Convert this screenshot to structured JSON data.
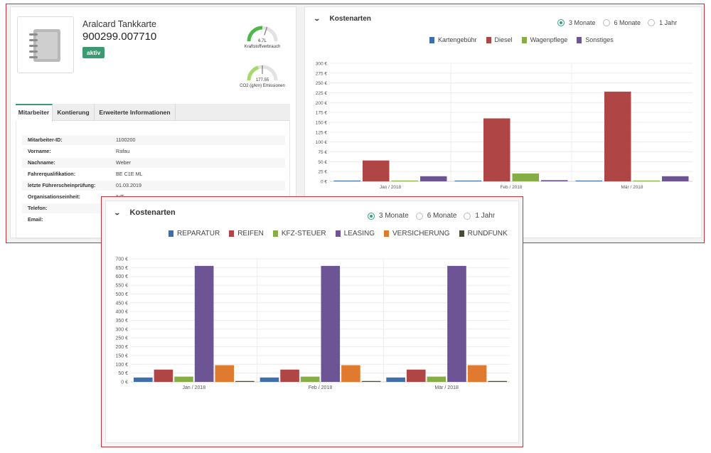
{
  "card": {
    "title": "Aralcard Tankkarte",
    "number": "900299.007710",
    "status": "aktiv",
    "image_icon": "notebook-icon",
    "gauges": [
      {
        "value": "6.7L",
        "label": "Kraftstoffverbrauch",
        "fill": 0.5,
        "color": "#4cb848"
      },
      {
        "value": "177.55",
        "label": "CO2 (g/km) Emissionen",
        "fill": 0.4,
        "color": "#a6d96a"
      }
    ],
    "tabs": [
      "Mitarbeiter",
      "Kontierung",
      "Erweiterte Informationen"
    ],
    "info_rows": [
      {
        "label": "Mitarbeiter-ID:",
        "value": "1100200"
      },
      {
        "label": "Vorname:",
        "value": "Rafau"
      },
      {
        "label": "Nachname:",
        "value": "Weber"
      },
      {
        "label": "Fahrerqualifikation:",
        "value": "BE C1E ML"
      },
      {
        "label": "letzte Führerscheinprüfung:",
        "value": "01.03.2019"
      },
      {
        "label": "Organisationseinheit:",
        "value": "IVT"
      },
      {
        "label": "Telefon:",
        "value": ""
      },
      {
        "label": "Email:",
        "value": ""
      }
    ]
  },
  "top_chart": {
    "header": "Kostenarten",
    "periods": [
      {
        "label": "3 Monate",
        "selected": true
      },
      {
        "label": "6 Monate",
        "selected": false
      },
      {
        "label": "1 Jahr",
        "selected": false
      }
    ]
  },
  "bottom_chart": {
    "header": "Kostenarten",
    "periods": [
      {
        "label": "3 Monate",
        "selected": true
      },
      {
        "label": "6 Monate",
        "selected": false
      },
      {
        "label": "1 Jahr",
        "selected": false
      }
    ]
  },
  "chart_data": [
    {
      "type": "bar",
      "categories": [
        "Jan / 2018",
        "Feb / 2018",
        "Mär / 2018"
      ],
      "series": [
        {
          "name": "Kartengebühr",
          "color": "#3f6eac",
          "values": [
            2,
            2,
            2
          ]
        },
        {
          "name": "Diesel",
          "color": "#b04545",
          "values": [
            53,
            160,
            228
          ]
        },
        {
          "name": "Wagenpflege",
          "color": "#87ad46",
          "values": [
            2,
            20,
            2
          ]
        },
        {
          "name": "Sonstiges",
          "color": "#6c5495",
          "values": [
            13,
            3,
            13
          ]
        }
      ],
      "ylim": [
        0,
        300
      ],
      "yticks": [
        0,
        25,
        50,
        75,
        100,
        125,
        150,
        175,
        200,
        225,
        250,
        275,
        300
      ],
      "unit": "€",
      "grid": true,
      "legend": "top"
    },
    {
      "type": "bar",
      "categories": [
        "Jan / 2018",
        "Feb / 2018",
        "Mär / 2018"
      ],
      "series": [
        {
          "name": "REPARATUR",
          "color": "#3f6eac",
          "values": [
            25,
            25,
            25
          ]
        },
        {
          "name": "REIFEN",
          "color": "#b04545",
          "values": [
            70,
            70,
            70
          ]
        },
        {
          "name": "KFZ-STEUER",
          "color": "#87ad46",
          "values": [
            30,
            30,
            30
          ]
        },
        {
          "name": "LEASING",
          "color": "#6c5495",
          "values": [
            660,
            660,
            660
          ]
        },
        {
          "name": "VERSICHERUNG",
          "color": "#e07a2f",
          "values": [
            95,
            95,
            95
          ]
        },
        {
          "name": "RUNDFUNK",
          "color": "#4b4b3a",
          "values": [
            5,
            5,
            5
          ]
        }
      ],
      "ylim": [
        0,
        700
      ],
      "yticks": [
        0,
        50,
        100,
        150,
        200,
        250,
        300,
        350,
        400,
        450,
        500,
        550,
        600,
        650,
        700
      ],
      "unit": "€",
      "grid": true,
      "legend": "top"
    }
  ]
}
